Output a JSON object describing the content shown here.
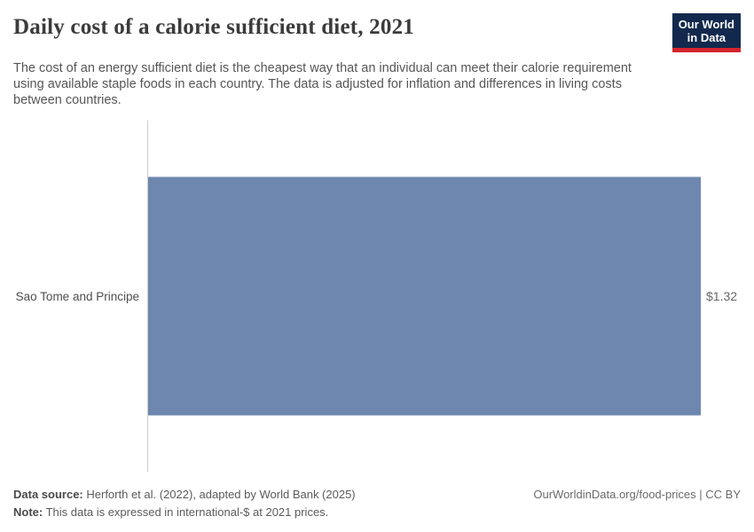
{
  "header": {
    "title": "Daily cost of a calorie sufficient diet, 2021",
    "logo": {
      "line1": "Our World",
      "line2": "in Data"
    }
  },
  "subtitle": "The cost of an energy sufficient diet is the cheapest way that an individual can meet their calorie requirement\nusing available staple foods in each country. The data is adjusted for inflation and differences in living costs\nbetween countries.",
  "chart_data": {
    "type": "bar",
    "orientation": "horizontal",
    "title": "Daily cost of a calorie sufficient diet, 2021",
    "categories": [
      "Sao Tome and Principe"
    ],
    "values": [
      1.32
    ],
    "value_labels": [
      "$1.32"
    ],
    "unit": "international-$ at 2021 prices",
    "xlim": [
      0,
      1.32
    ],
    "bar_color": "#6e87ae",
    "grid": false,
    "legend": "none"
  },
  "footer": {
    "data_source_label": "Data source:",
    "data_source_text": "Herforth et al. (2022), adapted by World Bank (2025)",
    "note_label": "Note:",
    "note_text": "This data is expressed in international-$ at 2021 prices.",
    "attribution": "OurWorldinData.org/food-prices | CC BY"
  },
  "colors": {
    "bar": "#6e87ae",
    "axis_line": "#cccccc",
    "logo_bg": "#12294d",
    "logo_stripe": "#d5252d"
  }
}
